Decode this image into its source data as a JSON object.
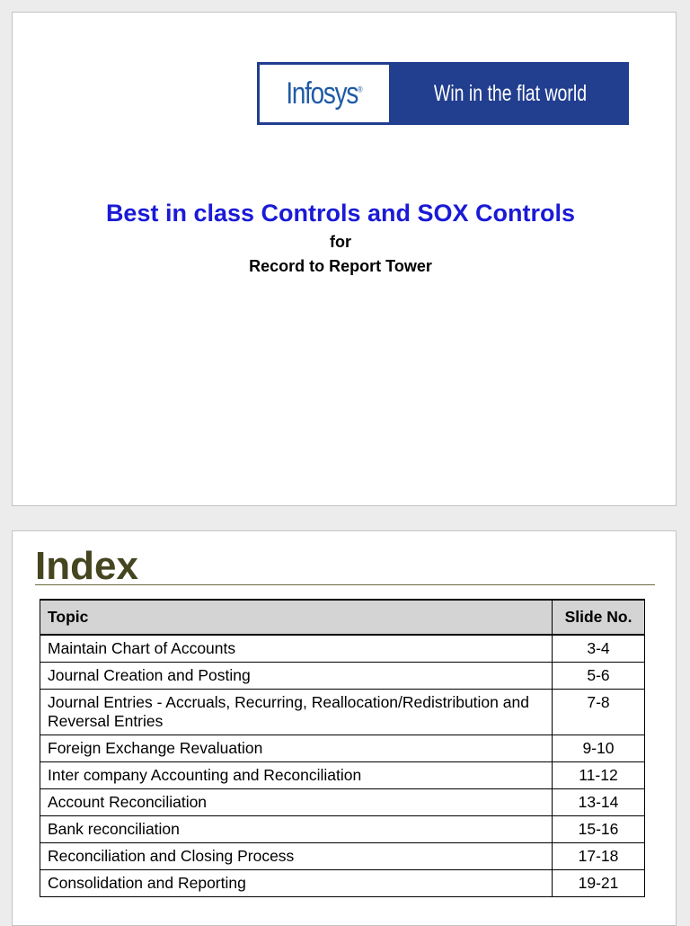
{
  "cover": {
    "logo_text": "Infosys",
    "logo_mark": "®",
    "tagline": "Win in the flat world",
    "title": "Best in class Controls and SOX Controls",
    "for_text": "for",
    "subtitle": "Record to Report Tower",
    "colors": {
      "banner": "#213e8f",
      "title": "#1a1ad6",
      "logo": "#1f5aa6"
    }
  },
  "index": {
    "heading": "Index",
    "columns": {
      "topic": "Topic",
      "slide": "Slide No."
    },
    "rows": [
      {
        "topic": "Maintain Chart of Accounts",
        "slide": "3-4"
      },
      {
        "topic": "Journal Creation and Posting",
        "slide": "5-6"
      },
      {
        "topic": "Journal Entries - Accruals, Recurring, Reallocation/Redistribution and Reversal Entries",
        "slide": "7-8"
      },
      {
        "topic": "Foreign Exchange Revaluation",
        "slide": "9-10"
      },
      {
        "topic": "Inter company Accounting and Reconciliation",
        "slide": "11-12"
      },
      {
        "topic": "Account Reconciliation",
        "slide": "13-14"
      },
      {
        "topic": "Bank reconciliation",
        "slide": "15-16"
      },
      {
        "topic": "Reconciliation and Closing Process",
        "slide": "17-18"
      },
      {
        "topic": "Consolidation and Reporting",
        "slide": "19-21"
      }
    ]
  }
}
